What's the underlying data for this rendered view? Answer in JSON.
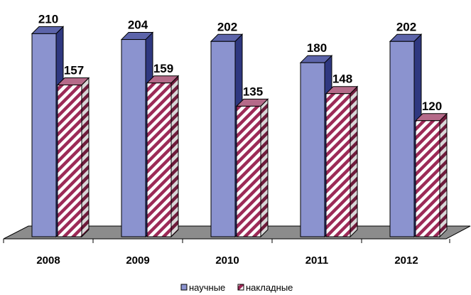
{
  "chart_data": {
    "type": "bar",
    "title": "",
    "xlabel": "",
    "ylabel": "",
    "categories": [
      "2008",
      "2009",
      "2010",
      "2011",
      "2012"
    ],
    "series": [
      {
        "name": "научные",
        "values": [
          210,
          204,
          202,
          180,
          202
        ],
        "color": "#8b93cf",
        "pattern": "solid"
      },
      {
        "name": "накладные",
        "values": [
          157,
          159,
          135,
          148,
          120
        ],
        "color": "#9c2a57",
        "pattern": "diagonal-stripes"
      }
    ],
    "ylim": [
      0,
      240
    ],
    "grid": false,
    "legend_position": "bottom",
    "style": "3d-column"
  }
}
